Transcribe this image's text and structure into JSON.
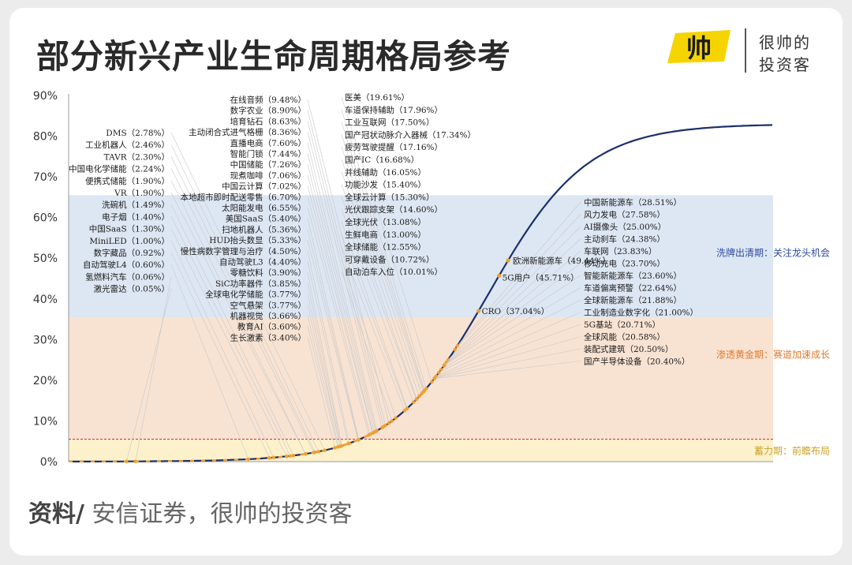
{
  "header": {
    "title": "部分新兴产业生命周期格局参考",
    "logo_mark": "帅",
    "logo_line1": "很帅的",
    "logo_line2": "投资客"
  },
  "source": {
    "prefix": "资料/",
    "text": " 安信证券，很帅的投资客"
  },
  "colors": {
    "curve": "#1b2f6b",
    "marker": "#f0a030",
    "zone_blue": "#dde7f3",
    "zone_orange": "#f8e3d3",
    "zone_yellow": "#fdf1cc",
    "threshold": "#cc2222",
    "zone_label_blue": "#2f4aa0",
    "zone_label_orange": "#e07a2a",
    "zone_label_yellow": "#c9a227",
    "logo_yellow": "#f5d400"
  },
  "chart_data": {
    "type": "line",
    "title": "部分新兴产业生命周期格局参考",
    "ylim": [
      0,
      90
    ],
    "yticks": [
      "0%",
      "10%",
      "20%",
      "30%",
      "40%",
      "50%",
      "60%",
      "70%",
      "80%",
      "90%"
    ],
    "grid": false,
    "threshold_line": 5.5,
    "zones": [
      {
        "label": "蓄力期：前瞻布局",
        "from": 0,
        "to": 5.5
      },
      {
        "label": "渗透黄金期：赛道加速成长",
        "from": 5.5,
        "to": 35.5
      },
      {
        "label": "洗牌出清期：关注龙头机会",
        "from": 35.5,
        "to": 65.5
      }
    ],
    "points": [
      {
        "label": "DMS（2.78%）",
        "value": 2.78
      },
      {
        "label": "工业机器人（2.46%）",
        "value": 2.46
      },
      {
        "label": "TAVR（2.30%）",
        "value": 2.3
      },
      {
        "label": "中国电化学储能（2.24%）",
        "value": 2.24
      },
      {
        "label": "便携式储能（1.90%）",
        "value": 1.9
      },
      {
        "label": "VR（1.90%）",
        "value": 1.9
      },
      {
        "label": "洗碗机（1.49%）",
        "value": 1.49
      },
      {
        "label": "电子烟（1.40%）",
        "value": 1.4
      },
      {
        "label": "中国SaaS（1.30%）",
        "value": 1.3
      },
      {
        "label": "MiniLED（1.00%）",
        "value": 1.0
      },
      {
        "label": "数字藏品（0.92%）",
        "value": 0.92
      },
      {
        "label": "自动驾驶L4（0.60%）",
        "value": 0.6
      },
      {
        "label": "氢燃料汽车（0.06%）",
        "value": 0.06
      },
      {
        "label": "激光雷达（0.05%）",
        "value": 0.05
      },
      {
        "label": "在线音频（9.48%）",
        "value": 9.48
      },
      {
        "label": "数字农业（8.90%）",
        "value": 8.9
      },
      {
        "label": "培育钻石（8.63%）",
        "value": 8.63
      },
      {
        "label": "主动闭合式进气格栅（8.36%）",
        "value": 8.36
      },
      {
        "label": "直播电商（7.60%）",
        "value": 7.6
      },
      {
        "label": "智能门锁（7.44%）",
        "value": 7.44
      },
      {
        "label": "中国储能（7.26%）",
        "value": 7.26
      },
      {
        "label": "现煮咖啡（7.06%）",
        "value": 7.06
      },
      {
        "label": "中国云计算（7.02%）",
        "value": 7.02
      },
      {
        "label": "本地超市即时配送零售（6.70%）",
        "value": 6.7
      },
      {
        "label": "太阳能发电（6.55%）",
        "value": 6.55
      },
      {
        "label": "美国SaaS（5.40%）",
        "value": 5.4
      },
      {
        "label": "扫地机器人（5.36%）",
        "value": 5.36
      },
      {
        "label": "HUD抬头数显（5.33%）",
        "value": 5.33
      },
      {
        "label": "慢性病数字管理与治疗（4.50%）",
        "value": 4.5
      },
      {
        "label": "自动驾驶L3（4.40%）",
        "value": 4.4
      },
      {
        "label": "零糖饮料（3.90%）",
        "value": 3.9
      },
      {
        "label": "SiC功率器件（3.85%）",
        "value": 3.85
      },
      {
        "label": "全球电化学储能（3.77%）",
        "value": 3.77
      },
      {
        "label": "空气悬架（3.77%）",
        "value": 3.77
      },
      {
        "label": "机器视觉（3.66%）",
        "value": 3.66
      },
      {
        "label": "教育AI（3.60%）",
        "value": 3.6
      },
      {
        "label": "生长激素（3.40%）",
        "value": 3.4
      },
      {
        "label": "医美（19.61%）",
        "value": 19.61
      },
      {
        "label": "车道保持辅助（17.96%）",
        "value": 17.96
      },
      {
        "label": "工业互联网（17.50%）",
        "value": 17.5
      },
      {
        "label": "国产冠状动脉介入器械（17.34%）",
        "value": 17.34
      },
      {
        "label": "疲劳驾驶提醒（17.16%）",
        "value": 17.16
      },
      {
        "label": "国产IC（16.68%）",
        "value": 16.68
      },
      {
        "label": "并线辅助（16.05%）",
        "value": 16.05
      },
      {
        "label": "功能沙发（15.40%）",
        "value": 15.4
      },
      {
        "label": "全球云计算（15.30%）",
        "value": 15.3
      },
      {
        "label": "光伏跟踪支架（14.60%）",
        "value": 14.6
      },
      {
        "label": "全球光伏（13.08%）",
        "value": 13.08
      },
      {
        "label": "生鲜电商（13.00%）",
        "value": 13.0
      },
      {
        "label": "全球储能（12.55%）",
        "value": 12.55
      },
      {
        "label": "可穿戴设备（10.72%）",
        "value": 10.72
      },
      {
        "label": "自动泊车入位（10.01%）",
        "value": 10.01
      },
      {
        "label": "欧洲新能源车（49.44%）",
        "value": 49.44
      },
      {
        "label": "5G用户（45.71%）",
        "value": 45.71
      },
      {
        "label": "CRO（37.04%）",
        "value": 37.04
      },
      {
        "label": "中国新能源车（28.51%）",
        "value": 28.51
      },
      {
        "label": "风力发电（27.58%）",
        "value": 27.58
      },
      {
        "label": "AI摄像头（25.00%）",
        "value": 25.0
      },
      {
        "label": "主动刹车（24.38%）",
        "value": 24.38
      },
      {
        "label": "车联网（23.83%）",
        "value": 23.83
      },
      {
        "label": "移动充电（23.70%）",
        "value": 23.7
      },
      {
        "label": "智能新能源车（23.60%）",
        "value": 23.6
      },
      {
        "label": "车道偏离预警（22.64%）",
        "value": 22.64
      },
      {
        "label": "全球新能源车（21.88%）",
        "value": 21.88
      },
      {
        "label": "工业制造业数字化（21.00%）",
        "value": 21.0
      },
      {
        "label": "5G基站（20.71%）",
        "value": 20.71
      },
      {
        "label": "全球风能（20.58%）",
        "value": 20.58
      },
      {
        "label": "装配式建筑（20.50%）",
        "value": 20.5
      },
      {
        "label": "国产半导体设备（20.40%）",
        "value": 20.4
      }
    ]
  }
}
